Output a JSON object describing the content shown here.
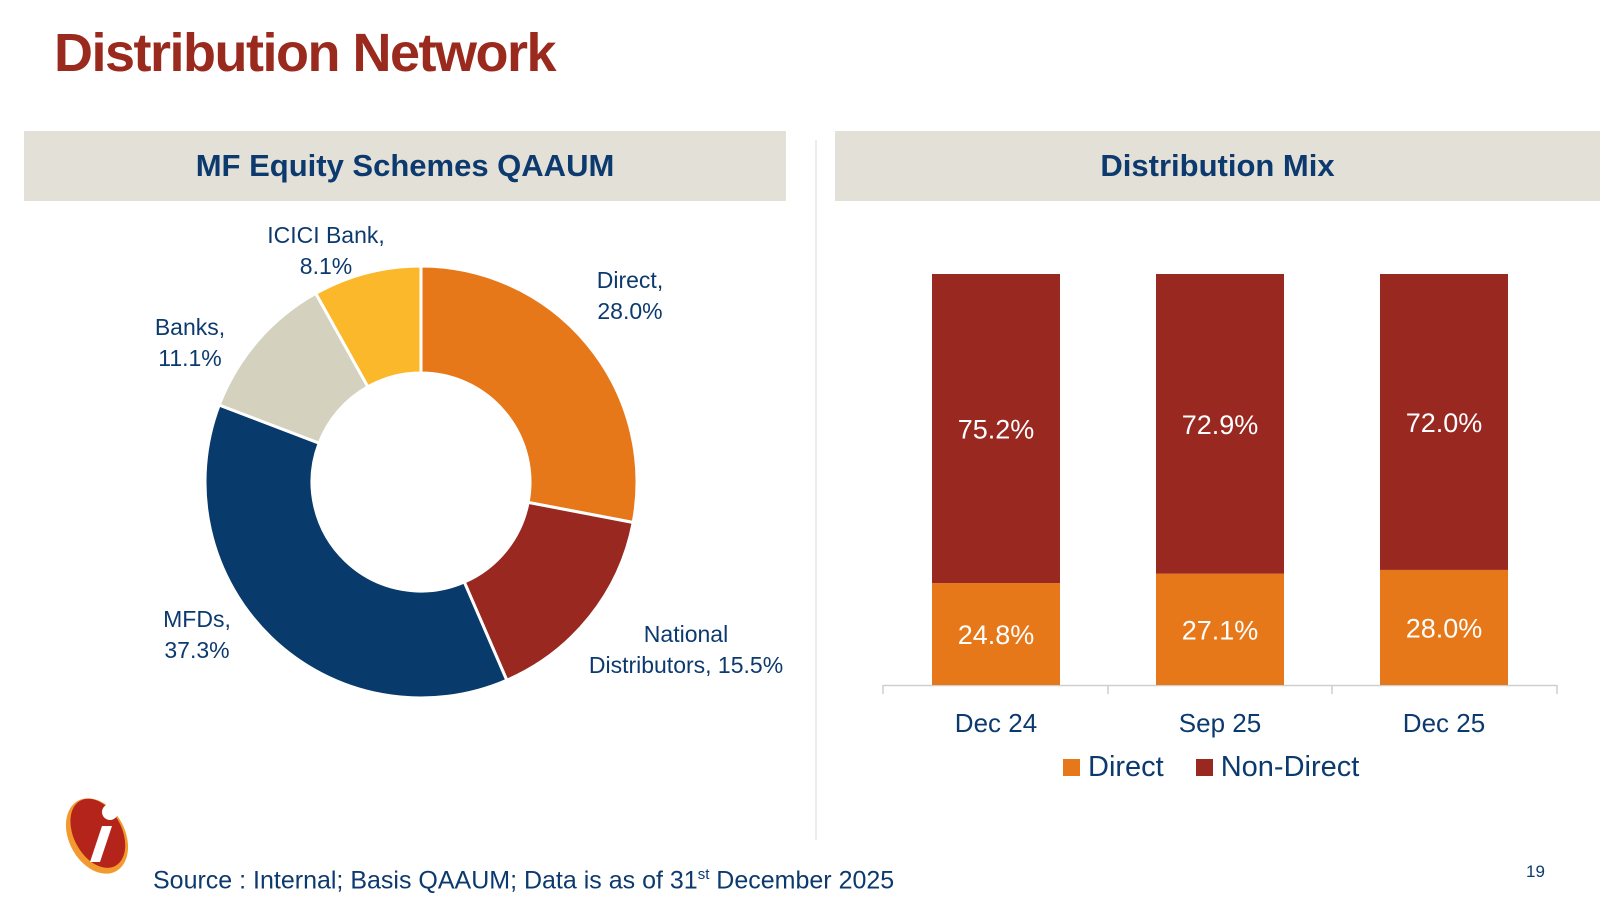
{
  "page": {
    "title": "Distribution Network",
    "page_number": "19"
  },
  "left_panel": {
    "header": "MF Equity Schemes QAAUM"
  },
  "right_panel": {
    "header": "Distribution Mix"
  },
  "footer": {
    "text_before": "Source : Internal; Basis QAAUM; Data is as of 31",
    "superscript": "st",
    "text_after": " December 2025"
  },
  "colors": {
    "brand_red": "#9b2a1e",
    "navy": "#0d3a6e",
    "orange": "#e6781a",
    "dark_red": "#982820",
    "dark_blue": "#083a6b",
    "beige": "#d4d1bf",
    "yellow": "#fbb82b"
  },
  "chart_data": [
    {
      "type": "pie",
      "variant": "donut",
      "title": "MF Equity Schemes QAAUM",
      "slices": [
        {
          "label_lines": [
            "Direct,",
            "28.0%"
          ],
          "name": "Direct",
          "value": 28.0,
          "color": "#e6781a"
        },
        {
          "label_lines": [
            "National",
            "Distributors, 15.5%"
          ],
          "name": "National Distributors",
          "value": 15.5,
          "color": "#982820"
        },
        {
          "label_lines": [
            "MFDs,",
            "37.3%"
          ],
          "name": "MFDs",
          "value": 37.3,
          "color": "#083a6b"
        },
        {
          "label_lines": [
            "Banks,",
            "11.1%"
          ],
          "name": "Banks",
          "value": 11.1,
          "color": "#d4d1bf"
        },
        {
          "label_lines": [
            "ICICI Bank,",
            "8.1%"
          ],
          "name": "ICICI Bank",
          "value": 8.1,
          "color": "#fbb82b"
        }
      ]
    },
    {
      "type": "bar",
      "stacked": true,
      "percent_stacked": true,
      "title": "Distribution Mix",
      "categories": [
        "Dec 24",
        "Sep 25",
        "Dec 25"
      ],
      "series": [
        {
          "name": "Direct",
          "values": [
            24.8,
            27.1,
            28.0
          ],
          "labels": [
            "24.8%",
            "27.1%",
            "28.0%"
          ],
          "color": "#e6781a"
        },
        {
          "name": "Non-Direct",
          "values": [
            75.2,
            72.9,
            72.0
          ],
          "labels": [
            "75.2%",
            "72.9%",
            "72.0%"
          ],
          "color": "#982820"
        }
      ],
      "ylim": [
        0,
        100
      ],
      "legend": "bottom"
    }
  ]
}
